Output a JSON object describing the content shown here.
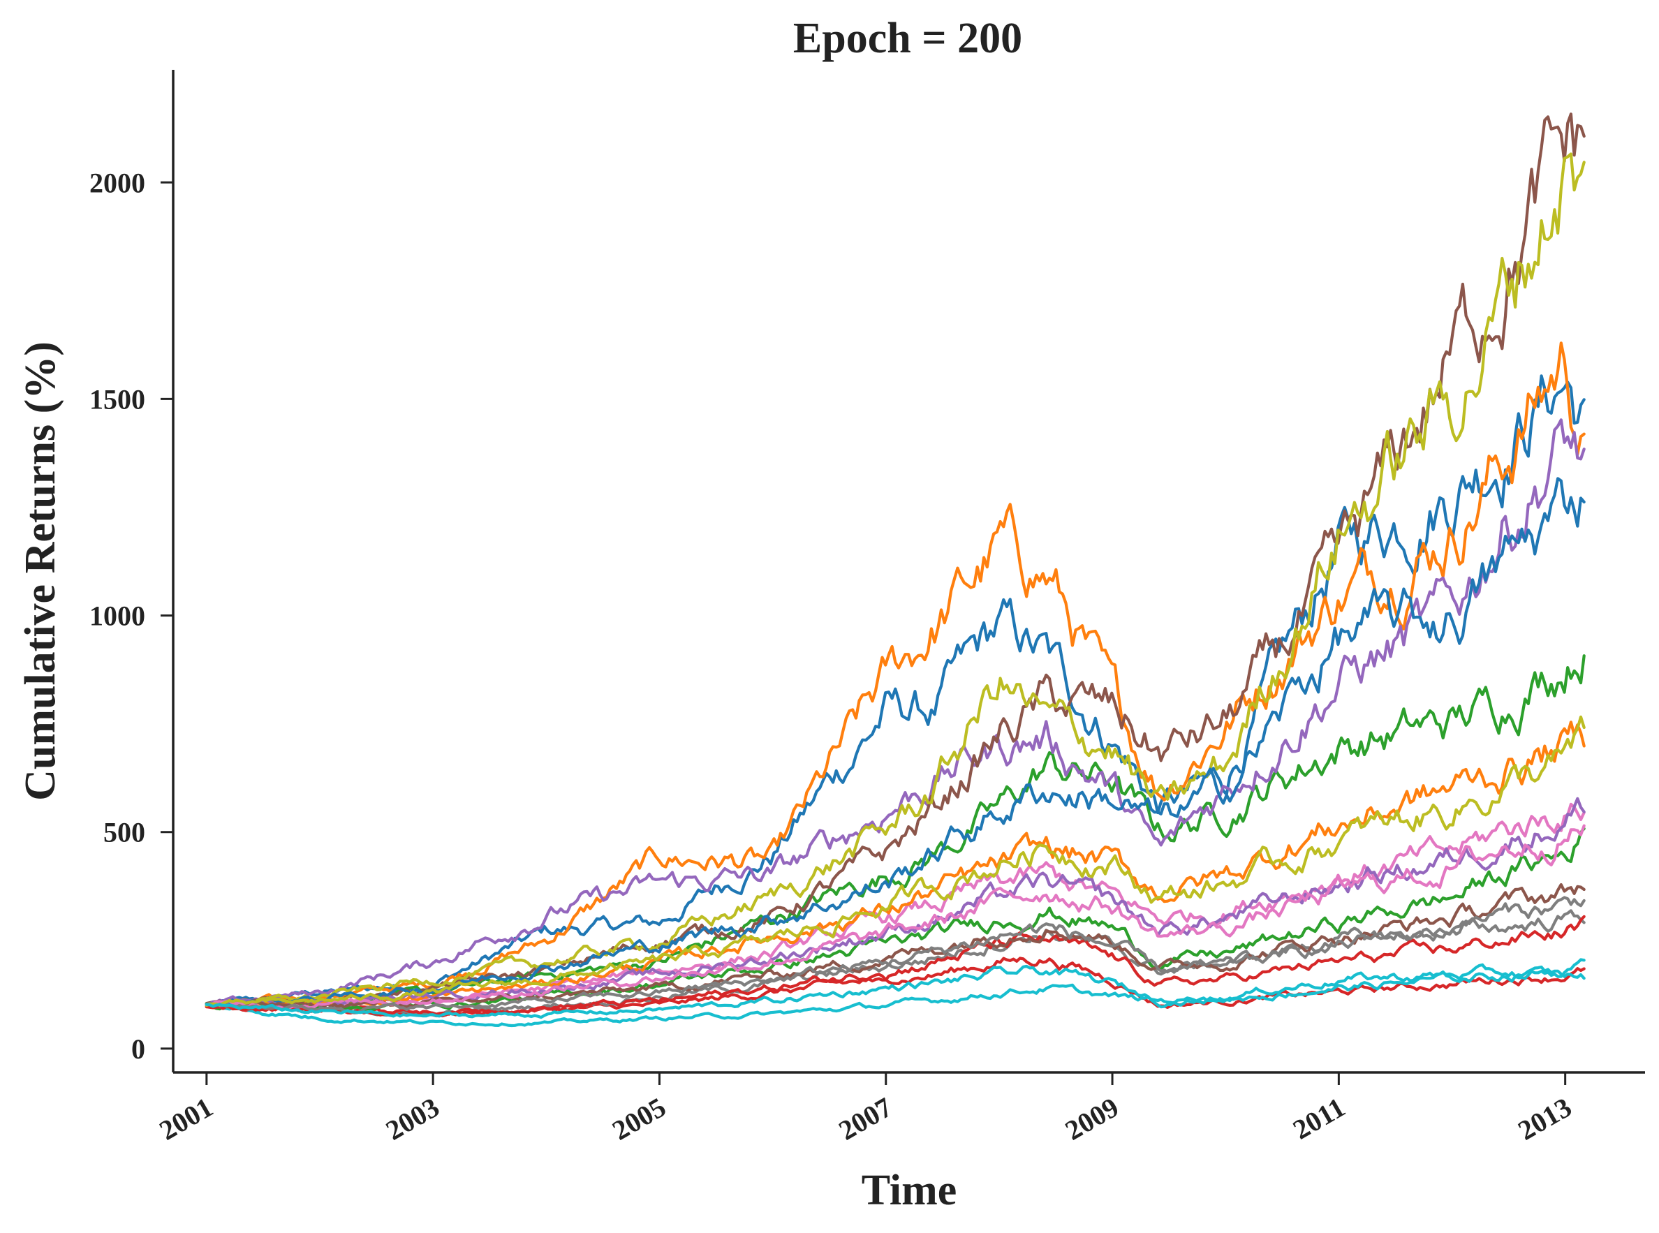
{
  "chart_data": {
    "type": "line",
    "title": "Epoch = 200",
    "xlabel": "Time",
    "ylabel": "Cumulative Returns (%)",
    "xlim": [
      "2000-09-15",
      "2013-09-15"
    ],
    "ylim": [
      -55,
      2260
    ],
    "x_ticks": [
      "2001",
      "2003",
      "2005",
      "2007",
      "2009",
      "2011",
      "2013"
    ],
    "y_ticks": [
      0,
      500,
      1000,
      1500,
      2000
    ],
    "grid": false,
    "legend": "none",
    "palette": [
      "#1f77b4",
      "#ff7f0e",
      "#2ca02c",
      "#d62728",
      "#9467bd",
      "#8c564b",
      "#e377c2",
      "#7f7f7f",
      "#bcbd22",
      "#17becf"
    ],
    "x": [
      "2001-01",
      "2002-01",
      "2003-01",
      "2004-01",
      "2005-01",
      "2006-01",
      "2007-01",
      "2007-06",
      "2008-01",
      "2008-06",
      "2009-01",
      "2009-06",
      "2010-01",
      "2011-01",
      "2012-01",
      "2012-06",
      "2013-01",
      "2013-03"
    ],
    "series": [
      {
        "values": [
          100,
          130,
          150,
          270,
          290,
          450,
          780,
          780,
          970,
          900,
          720,
          560,
          620,
          1150,
          1300,
          1400,
          1550,
          1450
        ]
      },
      {
        "values": [
          100,
          120,
          150,
          250,
          440,
          430,
          850,
          970,
          1150,
          1100,
          800,
          600,
          750,
          1050,
          1200,
          1350,
          1600,
          1400
        ]
      },
      {
        "values": [
          100,
          110,
          130,
          170,
          200,
          300,
          400,
          450,
          550,
          650,
          620,
          500,
          550,
          700,
          750,
          800,
          900,
          950
        ]
      },
      {
        "values": [
          100,
          90,
          80,
          90,
          100,
          130,
          160,
          170,
          200,
          210,
          160,
          100,
          110,
          130,
          150,
          160,
          170,
          180
        ]
      },
      {
        "values": [
          100,
          130,
          200,
          310,
          380,
          400,
          550,
          620,
          700,
          720,
          600,
          450,
          600,
          850,
          1000,
          1200,
          1400,
          1350
        ]
      },
      {
        "values": [
          100,
          110,
          140,
          180,
          250,
          300,
          450,
          550,
          720,
          800,
          780,
          680,
          750,
          1100,
          1600,
          1800,
          2050,
          2100
        ]
      },
      {
        "values": [
          100,
          100,
          110,
          140,
          180,
          220,
          300,
          330,
          380,
          400,
          350,
          300,
          320,
          400,
          450,
          500,
          550,
          560
        ]
      },
      {
        "values": [
          100,
          90,
          80,
          100,
          120,
          150,
          190,
          210,
          250,
          270,
          230,
          180,
          200,
          250,
          270,
          280,
          300,
          310
        ]
      },
      {
        "values": [
          100,
          120,
          160,
          200,
          250,
          350,
          500,
          600,
          850,
          750,
          700,
          550,
          650,
          1200,
          1500,
          1700,
          2050,
          1950
        ]
      },
      {
        "values": [
          100,
          70,
          60,
          60,
          70,
          80,
          100,
          110,
          130,
          140,
          120,
          110,
          120,
          160,
          170,
          175,
          170,
          165
        ]
      },
      {
        "values": [
          100,
          115,
          140,
          190,
          240,
          300,
          380,
          450,
          550,
          600,
          580,
          520,
          600,
          950,
          1000,
          1100,
          1250,
          1300
        ]
      },
      {
        "values": [
          100,
          105,
          120,
          150,
          200,
          260,
          320,
          360,
          420,
          460,
          430,
          360,
          400,
          520,
          600,
          640,
          700,
          720
        ]
      },
      {
        "values": [
          100,
          95,
          100,
          120,
          150,
          190,
          240,
          260,
          300,
          320,
          280,
          200,
          220,
          290,
          350,
          400,
          450,
          500
        ]
      },
      {
        "values": [
          100,
          90,
          85,
          95,
          110,
          140,
          180,
          200,
          240,
          250,
          210,
          150,
          160,
          200,
          230,
          250,
          270,
          290
        ]
      },
      {
        "values": [
          100,
          110,
          120,
          140,
          170,
          210,
          270,
          300,
          350,
          380,
          340,
          270,
          300,
          380,
          440,
          480,
          530,
          560
        ]
      },
      {
        "values": [
          100,
          100,
          105,
          120,
          140,
          170,
          210,
          230,
          270,
          290,
          250,
          190,
          200,
          260,
          300,
          330,
          360,
          380
        ]
      },
      {
        "values": [
          100,
          105,
          115,
          135,
          165,
          205,
          260,
          290,
          340,
          370,
          330,
          260,
          280,
          360,
          420,
          460,
          500,
          520
        ]
      },
      {
        "values": [
          100,
          95,
          95,
          110,
          130,
          160,
          200,
          220,
          260,
          280,
          240,
          180,
          190,
          240,
          280,
          310,
          330,
          350
        ]
      },
      {
        "values": [
          100,
          110,
          130,
          160,
          200,
          250,
          330,
          370,
          430,
          470,
          430,
          350,
          380,
          480,
          560,
          600,
          660,
          700
        ]
      },
      {
        "values": [
          100,
          85,
          75,
          80,
          90,
          110,
          140,
          150,
          170,
          180,
          150,
          110,
          115,
          140,
          160,
          170,
          180,
          190
        ]
      }
    ]
  }
}
